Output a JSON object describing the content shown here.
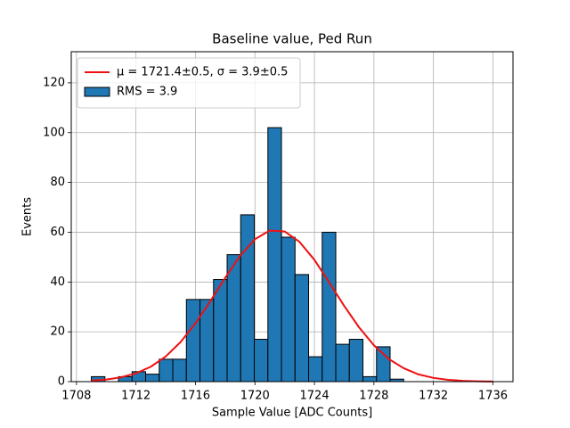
{
  "chart_data": {
    "type": "histogram",
    "title": "Baseline value, Ped Run",
    "xlabel": "Sample Value [ADC Counts]",
    "ylabel": "Events",
    "xlim": [
      1707.65,
      1737.35
    ],
    "ylim": [
      0,
      132.5
    ],
    "xticks": [
      1708,
      1712,
      1716,
      1720,
      1724,
      1728,
      1732,
      1736
    ],
    "yticks": [
      0,
      20,
      40,
      60,
      80,
      100,
      120
    ],
    "grid": true,
    "legend": "upper left",
    "series": [
      {
        "name": "μ = 1721.4±0.5, σ = 3.9±0.5",
        "type": "line",
        "color": "#ee1111",
        "x": [
          1709,
          1710,
          1711,
          1712,
          1713,
          1714,
          1715,
          1716,
          1717,
          1718,
          1719,
          1720,
          1721,
          1722,
          1723,
          1724,
          1725,
          1726,
          1727,
          1728,
          1729,
          1730,
          1731,
          1732,
          1733,
          1734,
          1735,
          1736
        ],
        "values": [
          0.39,
          0.85,
          1.74,
          3.34,
          6.0,
          10.1,
          15.9,
          23.4,
          32.3,
          41.7,
          50.5,
          57.2,
          60.7,
          60.3,
          56.1,
          48.9,
          39.8,
          30.4,
          21.8,
          14.6,
          9.1,
          5.4,
          2.9,
          1.5,
          0.73,
          0.33,
          0.14,
          0.05
        ]
      },
      {
        "name": "RMS = 3.9",
        "type": "histogram",
        "color": "#1f77b4",
        "bins": [
          1709,
          1709.913,
          1710.826,
          1711.739,
          1712.652,
          1713.565,
          1714.478,
          1715.391,
          1716.304,
          1717.217,
          1718.13,
          1719.043,
          1719.957,
          1720.87,
          1721.783,
          1722.696,
          1723.609,
          1724.522,
          1725.435,
          1726.348,
          1727.261,
          1728.174,
          1729.087,
          1730
        ],
        "values": [
          2,
          0,
          2,
          4,
          3,
          9,
          9,
          33,
          33,
          41,
          51,
          67,
          17,
          102,
          58,
          43,
          10,
          60,
          15,
          17,
          2,
          14,
          1
        ]
      }
    ]
  }
}
